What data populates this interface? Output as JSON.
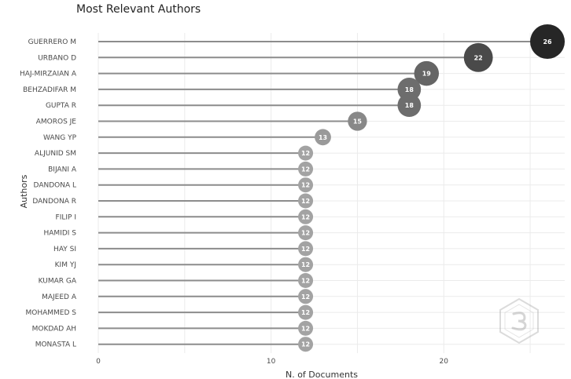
{
  "chart_data": {
    "type": "lollipop",
    "title": "Most Relevant Authors",
    "xlabel": "N. of Documents",
    "ylabel": "Authors",
    "xlim": [
      0,
      27
    ],
    "xticks": [
      0,
      10,
      20
    ],
    "grid": true,
    "legend": "none",
    "categories": [
      "GUERRERO M",
      "URBANO D",
      "HAJ-MIRZAIAN A",
      "BEHZADIFAR M",
      "GUPTA R",
      "AMOROS JE",
      "WANG YP",
      "ALJUNID SM",
      "BIJANI A",
      "DANDONA L",
      "DANDONA R",
      "FILIP I",
      "HAMIDI S",
      "HAY SI",
      "KIM YJ",
      "KUMAR GA",
      "MAJEED A",
      "MOHAMMED S",
      "MOKDAD AH",
      "MONASTA L"
    ],
    "values": [
      26,
      22,
      19,
      18,
      18,
      15,
      13,
      12,
      12,
      12,
      12,
      12,
      12,
      12,
      12,
      12,
      12,
      12,
      12,
      12
    ],
    "colors": {
      "stem": "#8c8c8c",
      "bubble_low": "#a3a3a3",
      "bubble_high": "#262626",
      "grid": "#ebebeb"
    }
  },
  "watermark": {
    "icon": "bibliometrix-hexagon-logo"
  }
}
